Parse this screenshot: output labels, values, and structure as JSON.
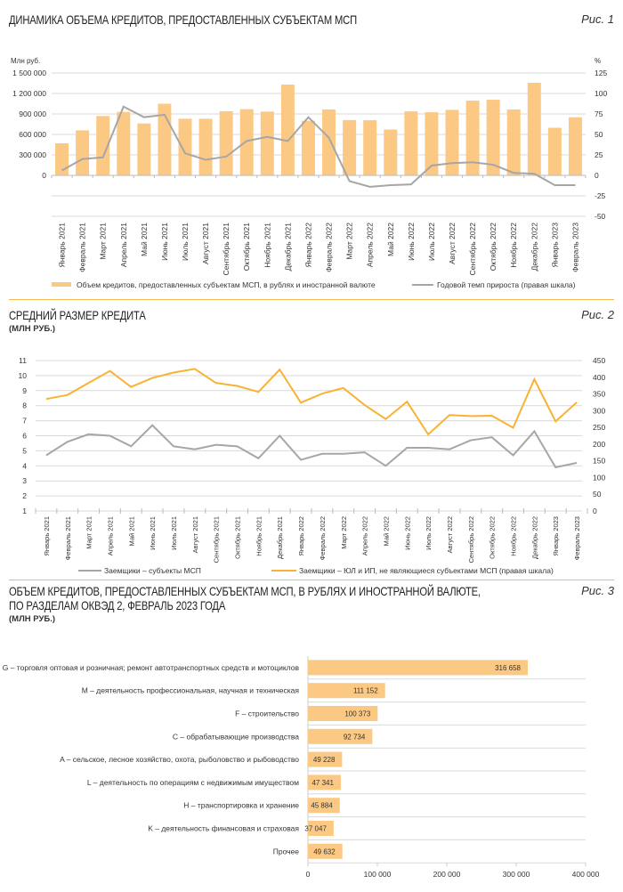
{
  "colors": {
    "bar": "#fcc985",
    "grey_line": "#a6a6a6",
    "orange_line": "#f9b233",
    "grid": "#d9d9d9",
    "separator": "#f6b94f"
  },
  "months": [
    "Январь 2021",
    "Февраль 2021",
    "Март 2021",
    "Апрель 2021",
    "Май 2021",
    "Июнь 2021",
    "Июль 2021",
    "Август 2021",
    "Сентябрь 2021",
    "Октябрь 2021",
    "Ноябрь 2021",
    "Декабрь 2021",
    "Январь 2022",
    "Февраль 2022",
    "Март 2022",
    "Апрель 2022",
    "Май 2022",
    "Июнь 2022",
    "Июль 2022",
    "Август 2022",
    "Сентябрь 2022",
    "Октябрь 2022",
    "Ноябрь 2022",
    "Декабрь 2022",
    "Январь 2023",
    "Февраль 2023"
  ],
  "chart_data": [
    {
      "type": "bar",
      "title": "ДИНАМИКА ОБЪЕМА КРЕДИТОВ, ПРЕДОСТАВЛЕННЫХ СУБЪЕКТАМ МСП",
      "figure_label": "Рис. 1",
      "ylabel": "Млн руб.",
      "y2label": "%",
      "ylim": [
        -600000,
        1500000
      ],
      "y2lim": [
        -50,
        125
      ],
      "yticks": [
        "1 500 000",
        "1 200 000",
        "900 000",
        "600 000",
        "300 000",
        "0"
      ],
      "ytick_values": [
        1500000,
        1200000,
        900000,
        600000,
        300000,
        0
      ],
      "y2ticks": [
        "125",
        "100",
        "75",
        "50",
        "25",
        "0",
        "-25",
        "-50"
      ],
      "y2tick_values": [
        125,
        100,
        75,
        50,
        25,
        0,
        -25,
        -50
      ],
      "series": [
        {
          "name": "Объем кредитов, предоставленных субъектам МСП, в рублях и иностранной валюте",
          "kind": "bar",
          "axis": "left",
          "values": [
            470000,
            660000,
            870000,
            930000,
            760000,
            1050000,
            830000,
            830000,
            940000,
            970000,
            935000,
            1330000,
            800000,
            965000,
            811000,
            808000,
            672000,
            938000,
            925000,
            960000,
            1095000,
            1108000,
            965000,
            1357000,
            698000,
            851000
          ]
        },
        {
          "name": "Годовой темп прироста (правая шкала)",
          "kind": "line",
          "axis": "right",
          "values": [
            6,
            20,
            22,
            84,
            71,
            74,
            27,
            19,
            23,
            42,
            47,
            42,
            71,
            46,
            -7,
            -14,
            -12,
            -11,
            12,
            15,
            16,
            13,
            3,
            2,
            -12,
            -12
          ]
        }
      ]
    },
    {
      "type": "line",
      "title": "СРЕДНИЙ РАЗМЕР КРЕДИТА",
      "subtitle": "(МЛН РУБ.)",
      "figure_label": "Рис. 2",
      "ylim": [
        1,
        11
      ],
      "y2lim": [
        0,
        450
      ],
      "yticks": [
        "11",
        "10",
        "9",
        "8",
        "7",
        "6",
        "5",
        "4",
        "3",
        "2",
        "1"
      ],
      "ytick_values": [
        11,
        10,
        9,
        8,
        7,
        6,
        5,
        4,
        3,
        2,
        1
      ],
      "y2ticks": [
        "450",
        "400",
        "350",
        "300",
        "250",
        "200",
        "150",
        "100",
        "50",
        "0"
      ],
      "y2tick_values": [
        450,
        400,
        350,
        300,
        250,
        200,
        150,
        100,
        50,
        0
      ],
      "series": [
        {
          "name": "Заемщики – субъекты МСП",
          "axis": "left",
          "values": [
            4.7,
            5.6,
            6.1,
            6.0,
            5.3,
            6.7,
            5.3,
            5.1,
            5.4,
            5.3,
            4.5,
            6.0,
            4.4,
            4.8,
            4.8,
            4.9,
            4.0,
            5.2,
            5.2,
            5.1,
            5.7,
            5.9,
            4.7,
            6.3,
            3.9,
            4.2
          ]
        },
        {
          "name": "Заемщики – ЮЛ и ИП, не являющиеся субъектами МСП (правая шкала)",
          "axis": "right",
          "values": [
            335,
            347,
            383,
            419,
            371,
            398,
            414,
            425,
            383,
            374,
            356,
            423,
            324,
            351,
            368,
            317,
            275,
            327,
            229,
            287,
            284,
            285,
            249,
            394,
            268,
            325
          ]
        }
      ]
    },
    {
      "type": "bar",
      "orientation": "horizontal",
      "title": "ОБЪЕМ КРЕДИТОВ, ПРЕДОСТАВЛЕННЫХ СУБЪЕКТАМ МСП, В РУБЛЯХ И ИНОСТРАННОЙ ВАЛЮТЕ,",
      "title_line2": "ПО РАЗДЕЛАМ ОКВЭД 2, ФЕВРАЛЬ 2023 ГОДА",
      "subtitle": "(МЛН РУБ.)",
      "figure_label": "Рис. 3",
      "xlim": [
        0,
        400000
      ],
      "xticks": [
        "0",
        "100 000",
        "200 000",
        "300 000",
        "400 000"
      ],
      "xtick_values": [
        0,
        100000,
        200000,
        300000,
        400000
      ],
      "categories": [
        "G – торговля оптовая и розничная; ремонт автотранспортных средств и мотоциклов",
        "M – деятельность профессиональная, научная и техническая",
        "F – строительство",
        "C – обрабатывающие производства",
        "A – сельское, лесное хозяйство, охота, рыболовство и рыбоводство",
        "L – деятельность по операциям с недвижимым имуществом",
        "H – транспортировка и хранение",
        "K – деятельность финансовая и страховая",
        "Прочее"
      ],
      "values": [
        316658,
        111152,
        100373,
        92734,
        49228,
        47341,
        45884,
        37047,
        49632
      ],
      "labels": [
        "316 658",
        "111 152",
        "100 373",
        "92 734",
        "49 228",
        "47 341",
        "45 884",
        "37 047",
        "49 632"
      ]
    }
  ]
}
